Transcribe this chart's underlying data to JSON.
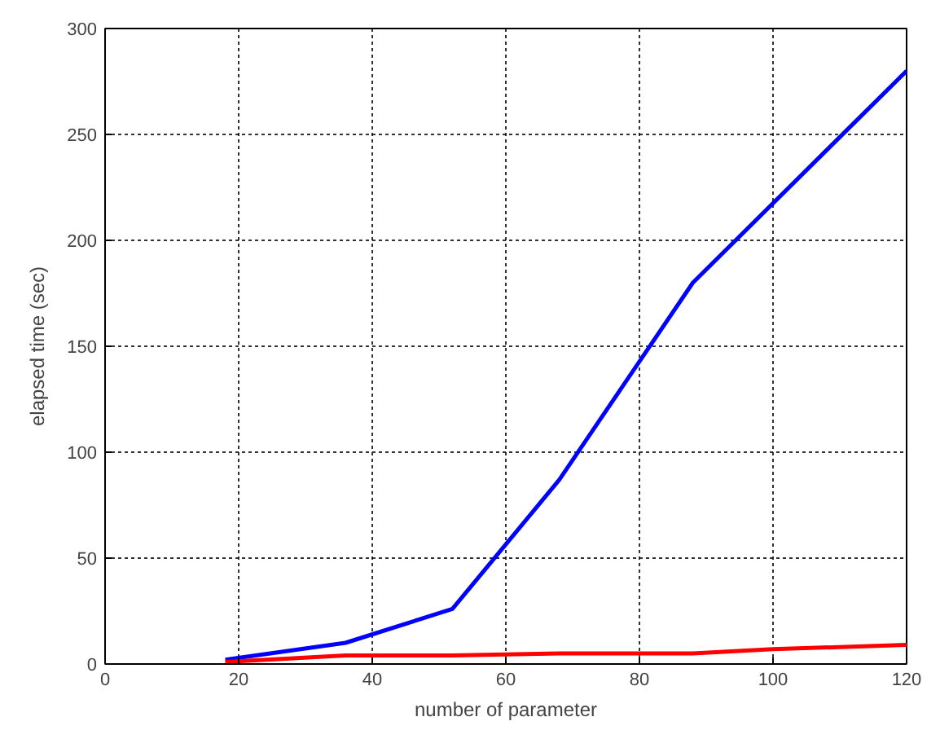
{
  "chart_data": {
    "type": "line",
    "xlabel": "number of parameter",
    "ylabel": "elapsed time (sec)",
    "xlim": [
      0,
      120
    ],
    "xticks": [
      0,
      20,
      40,
      60,
      80,
      100,
      120
    ],
    "ylim": [
      0,
      300
    ],
    "yticks": [
      0,
      50,
      100,
      150,
      200,
      250,
      300
    ],
    "grid": true,
    "line_style": "solid",
    "series": [
      {
        "color": "#0000ff",
        "x": [
          18,
          36,
          52,
          68,
          88,
          120
        ],
        "values": [
          2,
          10,
          26,
          87,
          180,
          280
        ]
      },
      {
        "color": "#ff0000",
        "x": [
          18,
          36,
          52,
          68,
          88,
          100,
          120
        ],
        "values": [
          1,
          4,
          4,
          5,
          5,
          7,
          9
        ]
      }
    ]
  }
}
